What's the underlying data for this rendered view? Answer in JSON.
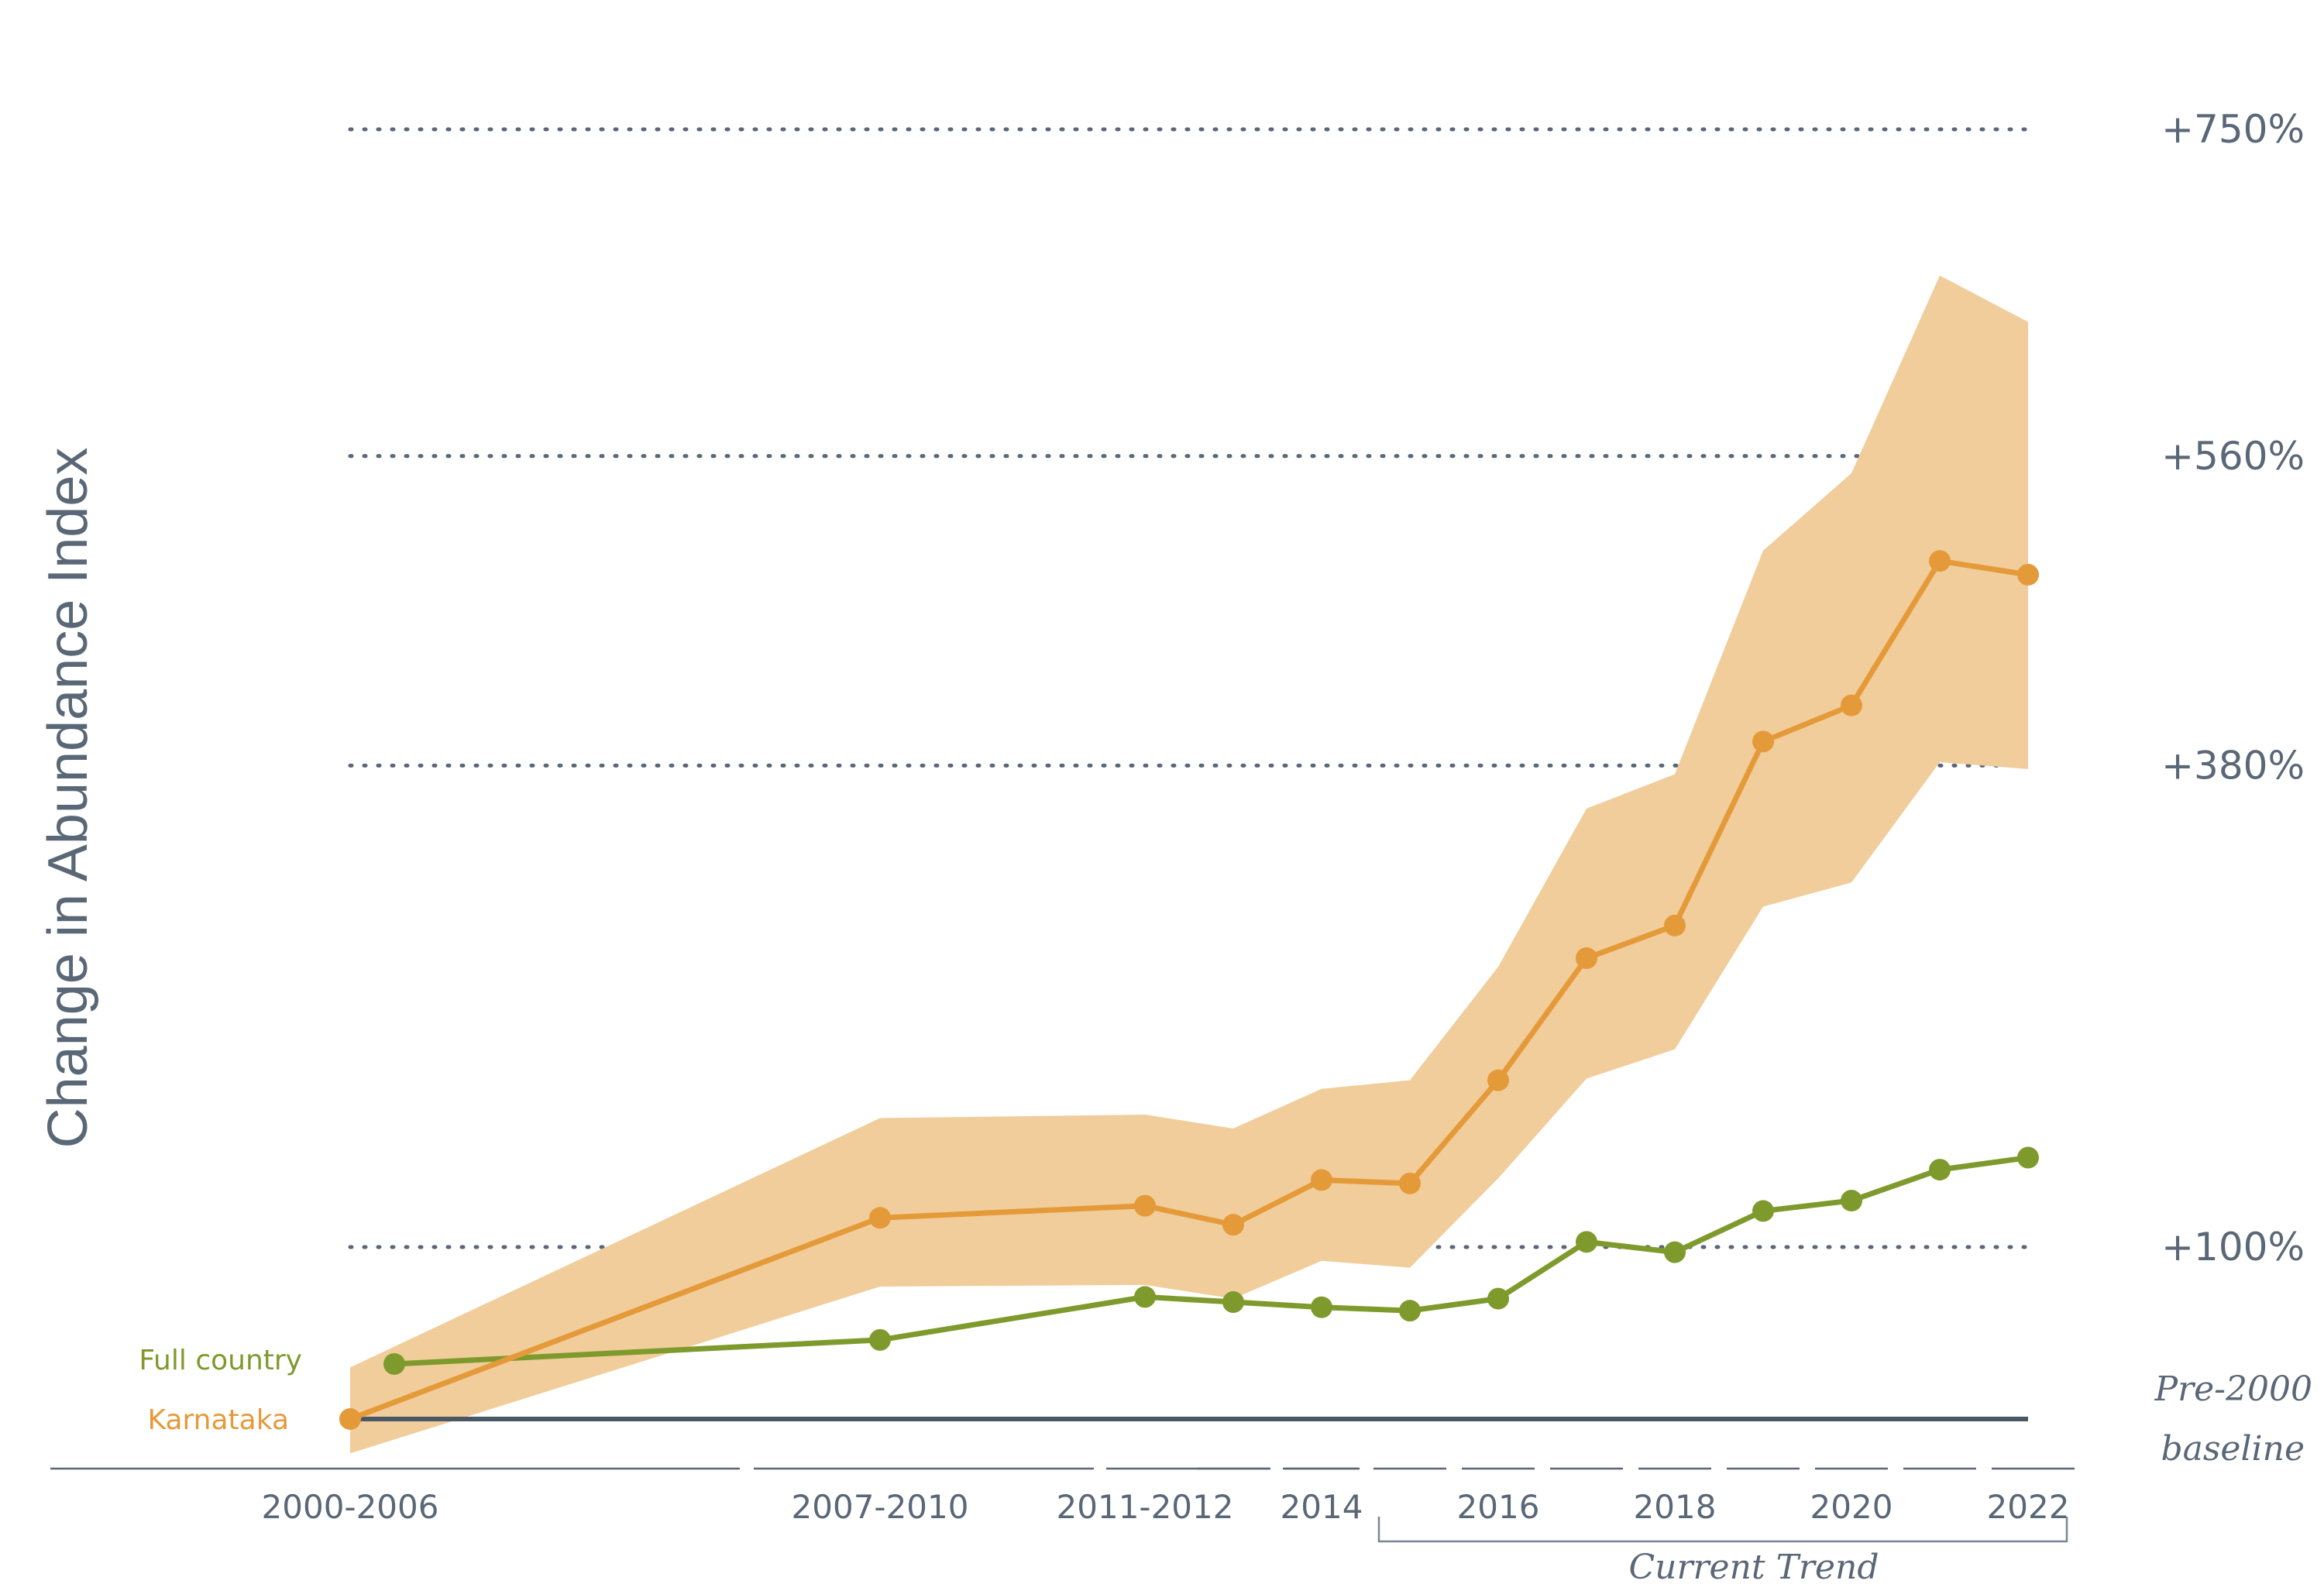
{
  "chart_data": {
    "type": "line",
    "ylabel": "Change in Abundance Index",
    "x": [
      "2000-2006",
      "2007-2010",
      "2011-2012",
      "2013",
      "2014",
      "2015",
      "2016",
      "2017",
      "2018",
      "2019",
      "2020",
      "2021",
      "2022"
    ],
    "x_tick_labels": [
      "2000-2006",
      "2007-2010",
      "2011-2012",
      "2014",
      "2016",
      "2018",
      "2020",
      "2022"
    ],
    "y_tick_labels": [
      "+100%",
      "+380%",
      "+560%",
      "+750%"
    ],
    "y_tick_values": [
      100,
      380,
      560,
      750
    ],
    "ylim": [
      -30,
      800
    ],
    "grid": "dotted horizontal lines at labelled ticks",
    "baseline": {
      "value": 0,
      "label_line1": "Pre-2000",
      "label_line2": "baseline"
    },
    "annotation": {
      "text": "Current Trend",
      "from": "2015",
      "to": "2022"
    },
    "series": [
      {
        "name": "Karnataka",
        "color": "#e59a3a",
        "band_color": "#f0cd9a",
        "values": [
          0,
          117,
          124,
          113,
          139,
          137,
          197,
          268,
          287,
          394,
          415,
          499,
          491
        ],
        "upper": [
          30,
          175,
          177,
          169,
          192,
          197,
          263,
          355,
          375,
          505,
          550,
          665,
          638
        ],
        "lower": [
          -20,
          77,
          78,
          70,
          92,
          88,
          140,
          198,
          215,
          298,
          312,
          382,
          378
        ]
      },
      {
        "name": "Full country",
        "color": "#7f9a2c",
        "x_start_offset": 0.5,
        "values": [
          32,
          46,
          71,
          68,
          65,
          63,
          70,
          103,
          97,
          121,
          127,
          145,
          152
        ]
      }
    ]
  }
}
